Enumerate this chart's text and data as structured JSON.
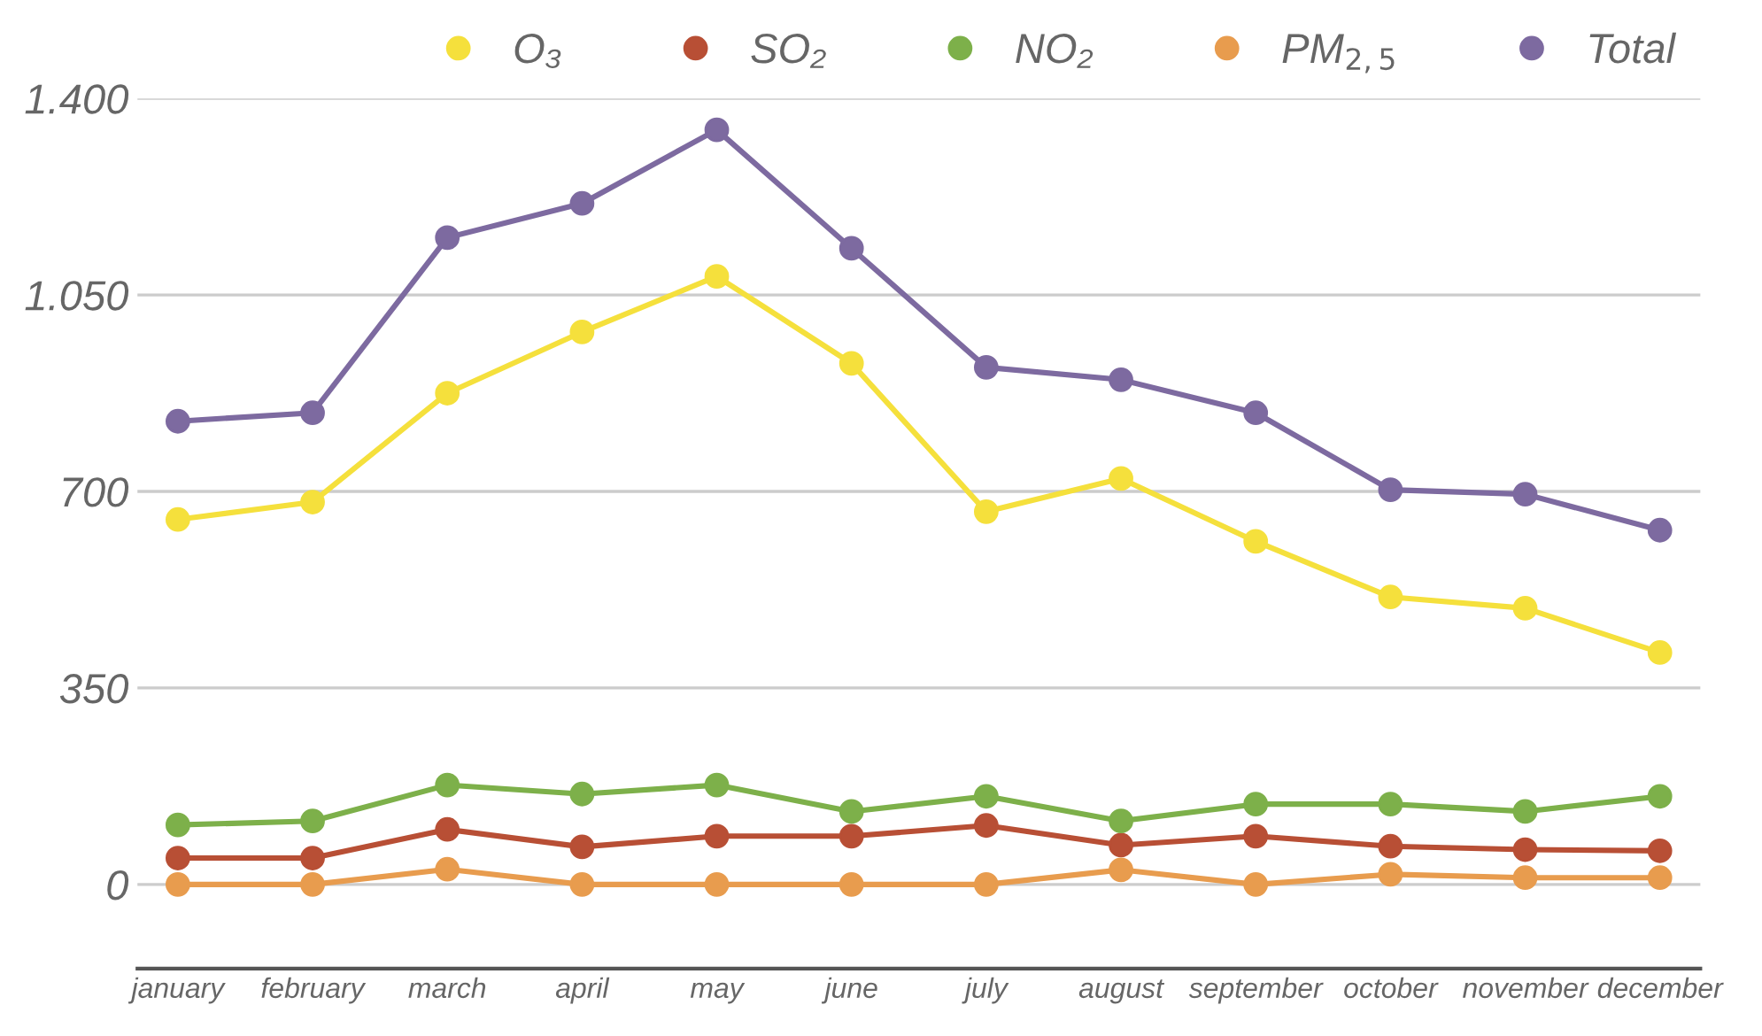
{
  "chart_data": {
    "type": "line",
    "categories": [
      "january",
      "february",
      "march",
      "april",
      "may",
      "june",
      "july",
      "august",
      "september",
      "october",
      "november",
      "december"
    ],
    "series": [
      {
        "name": "O₃",
        "color": "#f5e03c",
        "values": [
          650,
          681,
          875,
          984,
          1083,
          928,
          664,
          723,
          611,
          512,
          492,
          413
        ]
      },
      {
        "name": "SO₂",
        "color": "#b84f35",
        "values": [
          47,
          47,
          98,
          67,
          86,
          86,
          105,
          70,
          86,
          68,
          62,
          60
        ]
      },
      {
        "name": "NO₂",
        "color": "#7db04a",
        "values": [
          106,
          113,
          177,
          161,
          177,
          130,
          157,
          113,
          143,
          143,
          130,
          157
        ]
      },
      {
        "name": "PM$_{2,5}$",
        "color": "#e89c4e",
        "values": [
          0,
          0,
          27,
          0,
          0,
          0,
          0,
          26,
          0,
          18,
          12,
          12
        ]
      },
      {
        "name": "Total",
        "color": "#7d6aa0",
        "values": [
          825,
          840,
          1152,
          1213,
          1344,
          1133,
          921,
          899,
          840,
          703,
          695,
          631
        ]
      }
    ],
    "ylim": [
      -150,
      1400
    ],
    "yticks": [
      0,
      350,
      {
        "value": 700,
        "label": "700"
      },
      {
        "value": 1050,
        "label": "1.050"
      },
      {
        "value": 1400,
        "label": "1.400"
      }
    ],
    "grid": "y",
    "legend": "top right",
    "marker": "circle",
    "line_style": "solid"
  }
}
